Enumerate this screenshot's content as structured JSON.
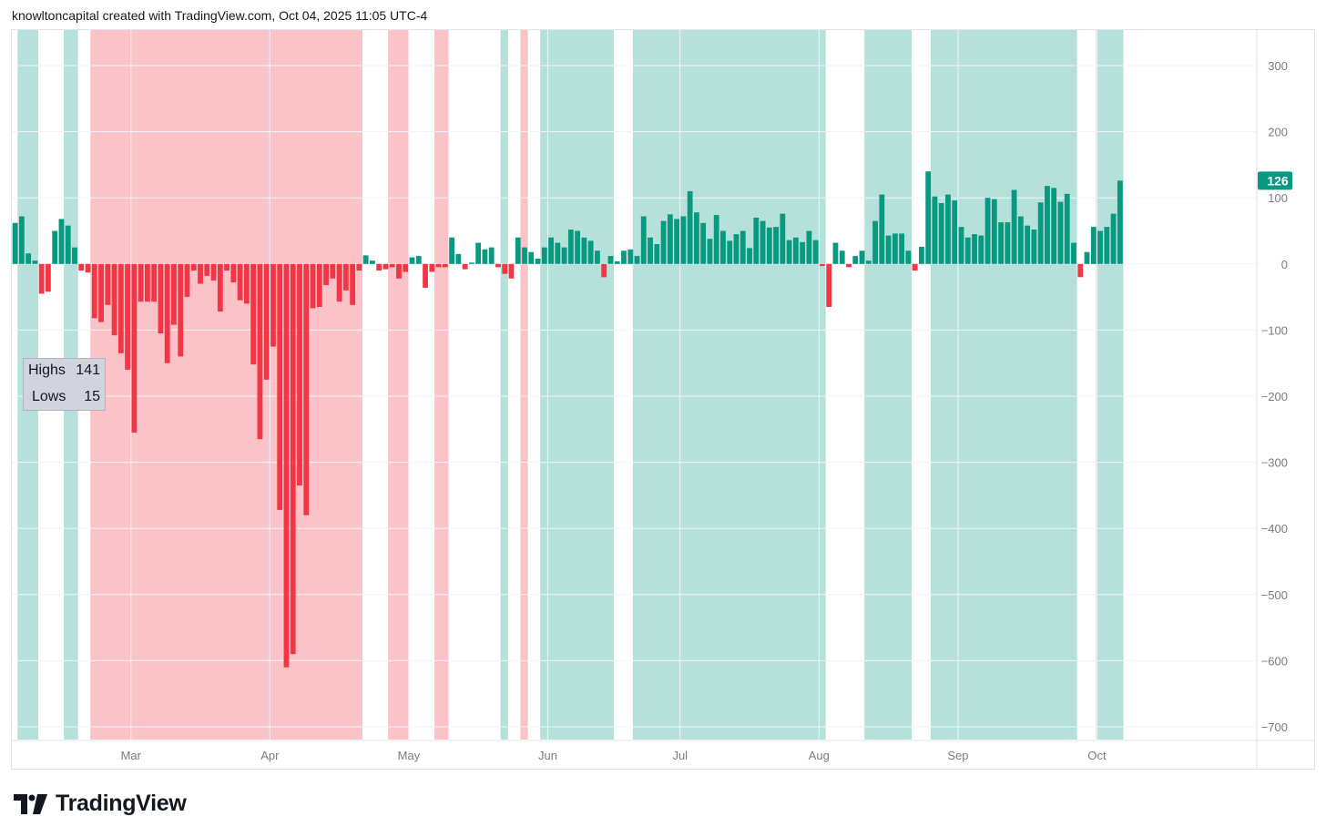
{
  "header": {
    "credit": "knowltoncapital created with TradingView.com, Oct 04, 2025 11:05 UTC-4"
  },
  "legend": {
    "highs_label": "Highs",
    "highs_value": "141",
    "lows_label": "Lows",
    "lows_value": "15"
  },
  "price_label": {
    "value": "126"
  },
  "footer": {
    "brand": "TradingView"
  },
  "colors": {
    "up": "#089981",
    "down": "#f23645",
    "up_band": "#b6e0da",
    "down_band": "#fbc3c8",
    "label_bg": "#089981",
    "grid": "#f0f3fa",
    "axis_text": "#787b86"
  },
  "chart_data": {
    "type": "bar",
    "title": "",
    "xlabel": "",
    "ylabel": "",
    "ylim": [
      -700,
      300
    ],
    "y_ticks": [
      300,
      200,
      100,
      0,
      -100,
      -200,
      -300,
      -400,
      -500,
      -600,
      -700
    ],
    "x_ticks": [
      {
        "label": "Mar",
        "x": 18
      },
      {
        "label": "Apr",
        "x": 39
      },
      {
        "label": "May",
        "x": 60
      },
      {
        "label": "Jun",
        "x": 81
      },
      {
        "label": "Jul",
        "x": 101
      },
      {
        "label": "Aug",
        "x": 122
      },
      {
        "label": "Sep",
        "x": 143
      },
      {
        "label": "Oct",
        "x": 164
      }
    ],
    "x_range": [
      0,
      190
    ],
    "series": [
      {
        "values": [
          62,
          72,
          16,
          5,
          -45,
          -42,
          50,
          68,
          58,
          25,
          -10,
          -13,
          -82,
          -88,
          -62,
          -108,
          -135,
          -160,
          -255,
          -57,
          -57,
          -57,
          -105,
          -150,
          -92,
          -140,
          -50,
          -10,
          -30,
          -18,
          -25,
          -72,
          -10,
          -28,
          -55,
          -60,
          -152,
          -265,
          -175,
          -125,
          -372,
          -610,
          -590,
          -335,
          -380,
          -67,
          -65,
          -32,
          -22,
          -57,
          -40,
          -62,
          -10,
          13,
          5,
          -10,
          -8,
          -5,
          -22,
          -12,
          10,
          12,
          -36,
          -12,
          -5,
          -5,
          40,
          15,
          -8,
          2,
          32,
          22,
          25,
          -5,
          -15,
          -22,
          40,
          25,
          18,
          8,
          25,
          40,
          32,
          25,
          52,
          50,
          40,
          35,
          20,
          -20,
          12,
          4,
          20,
          22,
          12,
          72,
          40,
          30,
          65,
          75,
          68,
          72,
          110,
          78,
          62,
          38,
          74,
          50,
          35,
          45,
          50,
          24,
          70,
          65,
          55,
          56,
          76,
          36,
          40,
          33,
          50,
          36,
          -3,
          -65,
          32,
          20,
          -5,
          12,
          20,
          5,
          65,
          105,
          43,
          46,
          46,
          20,
          -10,
          26,
          140,
          102,
          92,
          105,
          96,
          56,
          40,
          45,
          43,
          100,
          98,
          63,
          63,
          112,
          72,
          58,
          52,
          93,
          118,
          115,
          94,
          106,
          32,
          -20,
          18,
          56,
          50,
          56,
          76,
          126
        ]
      }
    ],
    "bands": [
      {
        "type": "up",
        "from": 1,
        "to": 3
      },
      {
        "type": "up",
        "from": 8,
        "to": 9
      },
      {
        "type": "down",
        "from": 12,
        "to": 52
      },
      {
        "type": "down",
        "from": 57,
        "to": 59
      },
      {
        "type": "down",
        "from": 64,
        "to": 65
      },
      {
        "type": "up",
        "from": 74,
        "to": 74
      },
      {
        "type": "down",
        "from": 77,
        "to": 77
      },
      {
        "type": "up",
        "from": 80,
        "to": 90
      },
      {
        "type": "up",
        "from": 94,
        "to": 122
      },
      {
        "type": "up",
        "from": 129,
        "to": 135
      },
      {
        "type": "up",
        "from": 139,
        "to": 160
      },
      {
        "type": "up",
        "from": 164,
        "to": 167
      }
    ],
    "last_value": 126
  }
}
